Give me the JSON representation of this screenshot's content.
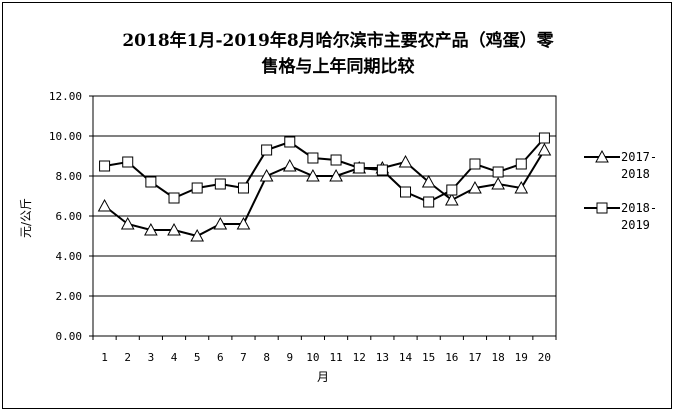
{
  "chart_data": {
    "type": "line",
    "title_line1": "2018年1月-2019年8月哈尔滨市主要农产品（鸡蛋）零",
    "title_line2": "售格与上年同期比较",
    "xlabel": "月",
    "ylabel": "元/公斤",
    "x": [
      1,
      2,
      3,
      4,
      5,
      6,
      7,
      8,
      9,
      10,
      11,
      12,
      13,
      14,
      15,
      16,
      17,
      18,
      19,
      20
    ],
    "ylim": [
      0,
      12
    ],
    "yticks": [
      "0.00",
      "2.00",
      "4.00",
      "6.00",
      "8.00",
      "10.00",
      "12.00"
    ],
    "grid": true,
    "legend_position": "right",
    "series": [
      {
        "name": "2017-2018",
        "legend_line1": "2017-",
        "legend_line2": "2018",
        "marker": "triangle",
        "values": [
          6.5,
          5.6,
          5.3,
          5.3,
          5.0,
          5.6,
          5.6,
          8.0,
          8.5,
          8.0,
          8.0,
          8.4,
          8.4,
          8.7,
          7.7,
          6.8,
          7.4,
          7.6,
          7.4,
          9.3
        ]
      },
      {
        "name": "2018-2019",
        "legend_line1": "2018-",
        "legend_line2": "2019",
        "marker": "square",
        "values": [
          8.5,
          8.7,
          7.7,
          6.9,
          7.4,
          7.6,
          7.4,
          9.3,
          9.7,
          8.9,
          8.8,
          8.4,
          8.3,
          7.2,
          6.7,
          7.3,
          8.6,
          8.2,
          8.6,
          9.9
        ]
      }
    ]
  }
}
